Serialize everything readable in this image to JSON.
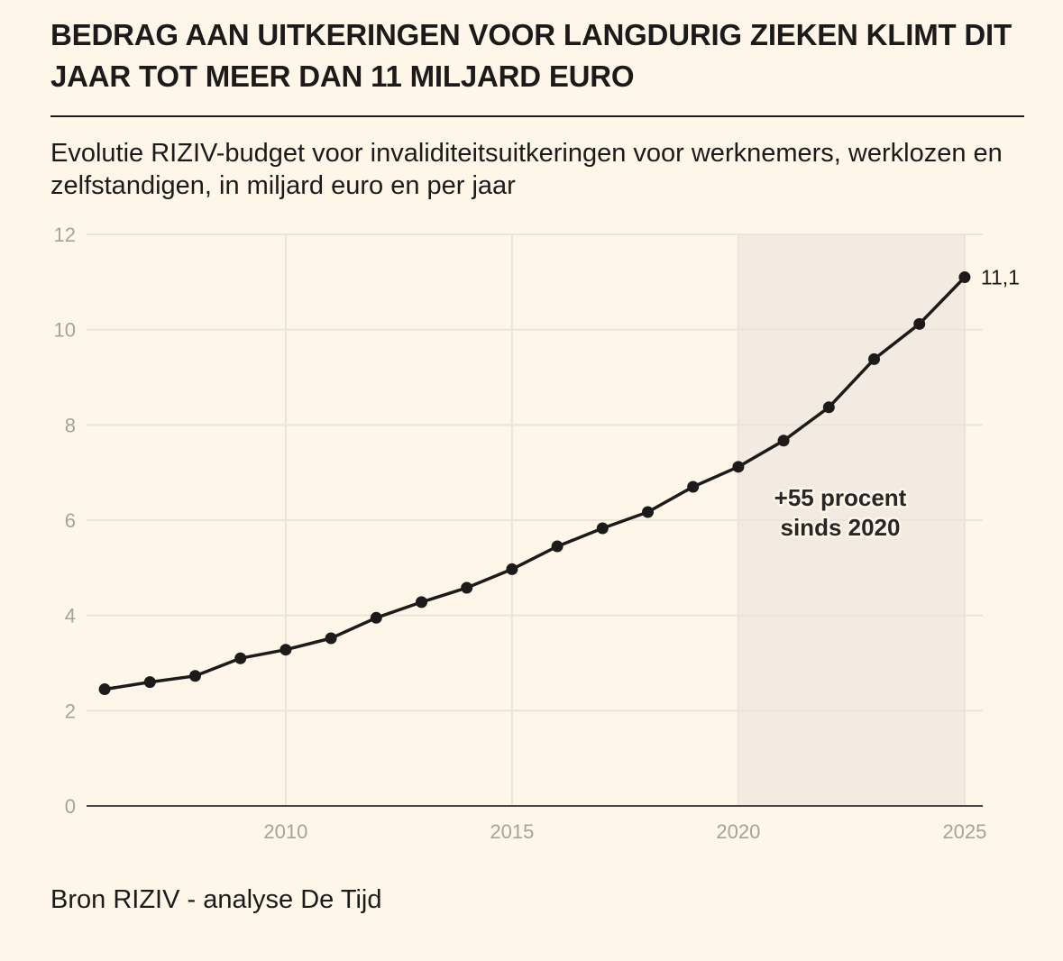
{
  "title": "BEDRAG AAN UITKERINGEN VOOR LANGDURIG ZIEKEN KLIMT DIT JAAR TOT MEER DAN 11 MILJARD EURO",
  "subtitle": "Evolutie RIZIV-budget voor invaliditeitsuitkeringen voor werknemers, werklozen en zelfstandigen, in miljard euro en per jaar",
  "source": "Bron RIZIV - analyse De Tijd",
  "colors": {
    "background": "#fdf6e9",
    "line": "#1d1a1a",
    "highlight_band": "#f1ebe1",
    "grid": "#ebe4d9",
    "tick_text": "#a7a29b"
  },
  "chart_data": {
    "type": "line",
    "x": [
      2006,
      2007,
      2008,
      2009,
      2010,
      2011,
      2012,
      2013,
      2014,
      2015,
      2016,
      2017,
      2018,
      2019,
      2020,
      2021,
      2022,
      2023,
      2024,
      2025
    ],
    "series": [
      {
        "values": [
          2.45,
          2.6,
          2.73,
          3.1,
          3.28,
          3.52,
          3.95,
          4.28,
          4.58,
          4.97,
          5.45,
          5.83,
          6.17,
          6.7,
          7.12,
          7.67,
          8.37,
          9.38,
          10.12,
          11.1
        ]
      }
    ],
    "xlim": [
      2005.6,
      2025.4
    ],
    "ylim": [
      0,
      12
    ],
    "x_ticks": [
      2010,
      2015,
      2020,
      2025
    ],
    "y_ticks": [
      0,
      2,
      4,
      6,
      8,
      10,
      12
    ],
    "highlight_range": [
      2020,
      2025
    ],
    "end_label": "11,1",
    "annotation": [
      "+55 procent",
      "sinds 2020"
    ],
    "grid": true
  }
}
